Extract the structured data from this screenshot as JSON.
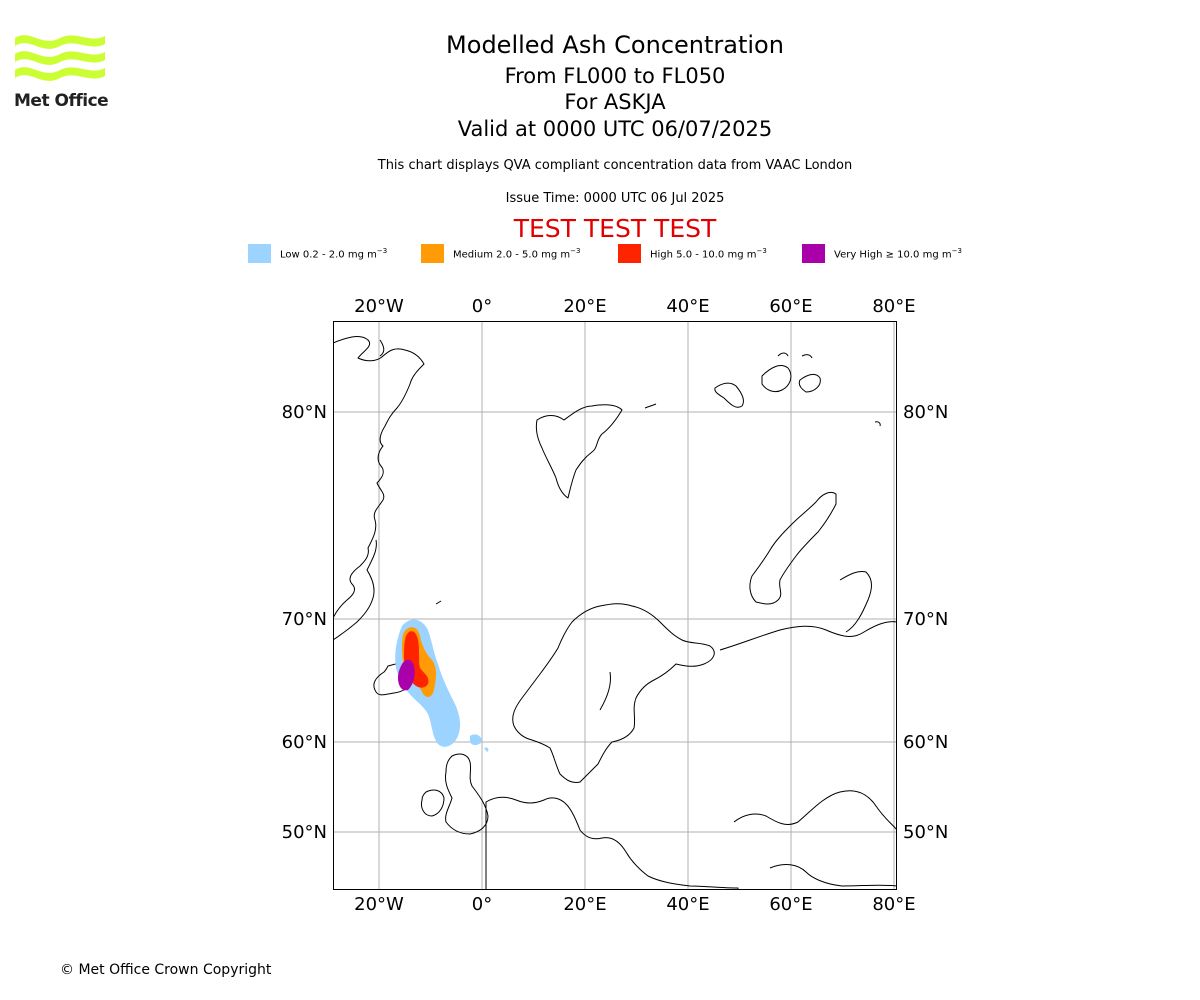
{
  "logo": {
    "text": "Met Office",
    "color": "#ccff33"
  },
  "title": {
    "main": "Modelled Ash Concentration",
    "flight_levels": "From FL000 to FL050",
    "volcano": "For ASKJA",
    "valid": "Valid at 0000 UTC 06/07/2025"
  },
  "description": "This chart displays QVA compliant concentration data from VAAC London",
  "issue_time": "Issue Time: 0000 UTC 06 Jul 2025",
  "test_banner": "TEST TEST TEST",
  "legend": [
    {
      "label": "Low 0.2 - 2.0 mg m",
      "exp": "−3",
      "color": "#9dd3ff"
    },
    {
      "label": "Medium 2.0 - 5.0 mg m",
      "exp": "−3",
      "color": "#ff9b06"
    },
    {
      "label": "High 5.0 - 10.0 mg m",
      "exp": "−3",
      "color": "#ff2400"
    },
    {
      "label": "Very High  ≥  10.0 mg m",
      "exp": "−3",
      "color": "#aa00aa"
    }
  ],
  "map": {
    "lon_ticks": [
      "20°W",
      "0°",
      "20°E",
      "40°E",
      "60°E",
      "80°E"
    ],
    "lat_ticks": [
      "80°N",
      "70°N",
      "60°N",
      "50°N"
    ],
    "graticule_color": "#b0b0b0",
    "coast_color": "#000000"
  },
  "copyright": "© Met Office Crown Copyright"
}
